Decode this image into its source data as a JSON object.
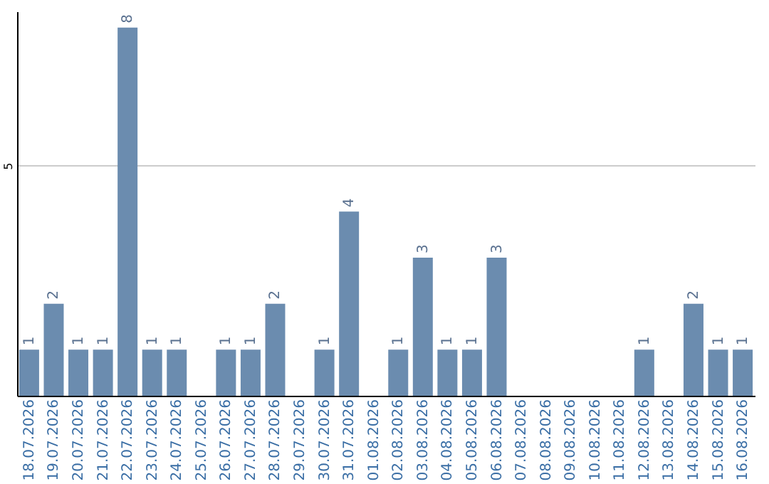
{
  "chart_data": {
    "type": "bar",
    "categories": [
      "18.07.2026",
      "19.07.2026",
      "20.07.2026",
      "21.07.2026",
      "22.07.2026",
      "23.07.2026",
      "24.07.2026",
      "25.07.2026",
      "26.07.2026",
      "27.07.2026",
      "28.07.2026",
      "29.07.2026",
      "30.07.2026",
      "31.07.2026",
      "01.08.2026",
      "02.08.2026",
      "03.08.2026",
      "04.08.2026",
      "05.08.2026",
      "06.08.2026",
      "07.08.2026",
      "08.08.2026",
      "09.08.2026",
      "10.08.2026",
      "11.08.2026",
      "12.08.2026",
      "13.08.2026",
      "14.08.2026",
      "15.08.2026",
      "16.08.2026"
    ],
    "values": [
      1,
      2,
      1,
      1,
      8,
      1,
      1,
      0,
      1,
      1,
      2,
      0,
      1,
      4,
      0,
      1,
      3,
      1,
      1,
      3,
      0,
      0,
      0,
      0,
      0,
      1,
      0,
      2,
      1,
      1
    ],
    "value_labels": [
      "1",
      "2",
      "1",
      "1",
      "8",
      "1",
      "1",
      null,
      "1",
      "1",
      "2",
      null,
      "1",
      "4",
      null,
      "1",
      "3",
      "1",
      "1",
      "3",
      null,
      null,
      null,
      null,
      null,
      "1",
      null,
      "2",
      "1",
      "1"
    ],
    "color": "#6b8caf",
    "ylim": [
      0,
      8.35
    ],
    "yticks": [
      5
    ],
    "grid": "y"
  }
}
